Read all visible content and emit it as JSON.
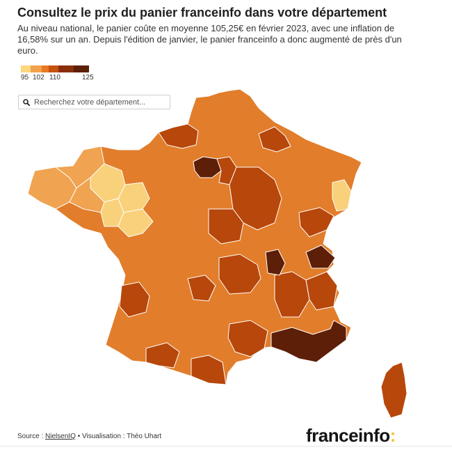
{
  "header": {
    "title": "Consultez le prix du panier franceinfo dans votre département",
    "subtitle": "Au niveau national, le panier coûte en moyenne 105,25€ en février 2023, avec une inflation de 16,58% sur un an. Depuis l'édition de janvier, le panier franceinfo a donc augmenté de près d'un euro."
  },
  "legend": {
    "tick_labels": [
      "95",
      "102",
      "110",
      "125"
    ],
    "colors": [
      "#fdd77e",
      "#f0a14b",
      "#e77a22",
      "#c5520d",
      "#8a2e0c",
      "#5c1f08"
    ]
  },
  "search": {
    "placeholder": "Recherchez votre département..."
  },
  "map": {
    "category_colors": {
      "c1": "#f8d17a",
      "c2": "#f0a350",
      "c3": "#e27d2b",
      "c4": "#b7470b",
      "c5": "#5d1f07"
    },
    "region_level_counts": {
      "c1": 5,
      "c2": 9,
      "c3": 28,
      "c4": 20,
      "c5": 4
    }
  },
  "footer": {
    "source_label": "Source : ",
    "source_name": "NielsenIQ",
    "separator": " • Visualisation : Théo Uhart"
  },
  "brand": {
    "logo_text": "franceinfo",
    "logo_colon": ":"
  }
}
